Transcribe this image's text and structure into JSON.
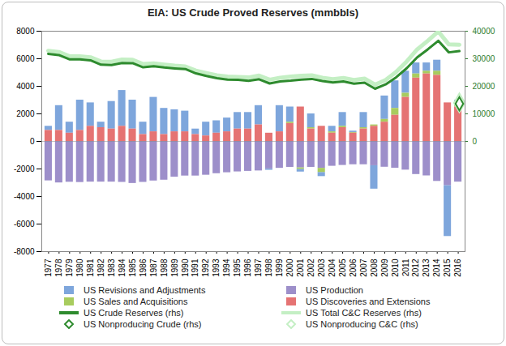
{
  "chart_data": {
    "type": "bar",
    "title": "EIA: US Crude Proved Reserves (mmbbls)",
    "categories": [
      "1977",
      "1978",
      "1979",
      "1980",
      "1981",
      "1982",
      "1983",
      "1984",
      "1985",
      "1986",
      "1987",
      "1988",
      "1989",
      "1990",
      "1991",
      "1992",
      "1993",
      "1994",
      "1995",
      "1996",
      "1997",
      "1998",
      "1999",
      "2000",
      "2001",
      "2002",
      "2003",
      "2004",
      "2005",
      "2006",
      "2007",
      "2008",
      "2009",
      "2010",
      "2011",
      "2012",
      "2013",
      "2014",
      "2015",
      "2016"
    ],
    "ylim": [
      -8000,
      8000
    ],
    "yticks": [
      -8000,
      -6000,
      -4000,
      -2000,
      0,
      2000,
      4000,
      6000,
      8000
    ],
    "y2lim": [
      -40000,
      40000
    ],
    "y2ticks": [
      0,
      10000,
      20000,
      30000,
      40000
    ],
    "stacked": true,
    "grid": false,
    "legend": "bottom",
    "series": [
      {
        "name": "US Revisions and Adjustments",
        "type": "bar",
        "color": "#7ea6dc",
        "values": [
          300,
          1800,
          800,
          2200,
          1700,
          400,
          2000,
          2600,
          2100,
          900,
          2500,
          1900,
          1600,
          1500,
          400,
          1000,
          900,
          1000,
          1200,
          1200,
          1400,
          -100,
          1900,
          1100,
          -200,
          1000,
          -300,
          400,
          1000,
          100,
          1100,
          -1700,
          1700,
          2000,
          1600,
          800,
          600,
          800,
          -3700,
          300
        ]
      },
      {
        "name": "US Production",
        "type": "bar",
        "color": "#9d8fca",
        "values": [
          -2860,
          -3010,
          -2960,
          -2980,
          -2950,
          -2950,
          -2950,
          -2970,
          -3050,
          -2970,
          -2870,
          -2810,
          -2590,
          -2510,
          -2510,
          -2450,
          -2340,
          -2270,
          -2210,
          -2170,
          -2140,
          -1990,
          -1950,
          -1880,
          -1920,
          -1880,
          -1950,
          -1800,
          -1740,
          -1690,
          -1690,
          -1760,
          -1870,
          -1940,
          -2080,
          -2400,
          -2500,
          -2900,
          -3200,
          -2950
        ]
      },
      {
        "name": "US Sales and Acquisitions",
        "type": "bar",
        "color": "#a8cc5e",
        "values": [
          0,
          0,
          0,
          0,
          0,
          0,
          0,
          0,
          0,
          0,
          0,
          0,
          0,
          0,
          0,
          0,
          0,
          0,
          0,
          0,
          0,
          0,
          0,
          100,
          -100,
          100,
          -300,
          100,
          100,
          50,
          100,
          100,
          200,
          500,
          300,
          300,
          200,
          300,
          0,
          200
        ]
      },
      {
        "name": "US Discoveries and Extensions",
        "type": "bar",
        "color": "#e57373",
        "values": [
          800,
          800,
          600,
          800,
          1100,
          1000,
          900,
          1100,
          900,
          500,
          700,
          500,
          700,
          700,
          500,
          400,
          600,
          700,
          900,
          900,
          1200,
          600,
          700,
          1300,
          2500,
          900,
          1100,
          600,
          1000,
          600,
          900,
          1100,
          1400,
          1900,
          3200,
          4600,
          4900,
          4800,
          2800,
          2500
        ]
      },
      {
        "name": "US Crude Reserves (rhs)",
        "type": "line",
        "axis": "y2",
        "color": "#2e8b2e",
        "values": [
          31780,
          31355,
          29810,
          29805,
          29426,
          27858,
          27735,
          28446,
          28416,
          26889,
          27256,
          26825,
          26501,
          26254,
          24682,
          23745,
          22957,
          22457,
          22351,
          22017,
          22546,
          21034,
          21765,
          22045,
          22446,
          22677,
          21891,
          21371,
          21757,
          20972,
          21317,
          19121,
          20682,
          23267,
          26544,
          30529,
          33400,
          36520,
          32318,
          32773
        ]
      },
      {
        "name": "US Total C&C Reserves (rhs)",
        "type": "line",
        "axis": "y2",
        "color": "#c4efc4",
        "values": [
          32900,
          32450,
          30900,
          30900,
          30550,
          29000,
          28900,
          29700,
          29600,
          28100,
          28300,
          27900,
          27500,
          27200,
          25700,
          24800,
          24000,
          23500,
          23400,
          23200,
          23900,
          22400,
          23100,
          23500,
          23800,
          24000,
          23100,
          22600,
          23000,
          22300,
          22800,
          20600,
          22300,
          25200,
          29000,
          33400,
          36500,
          39900,
          35200,
          35100
        ]
      },
      {
        "name": "US Nonproducing Crude (rhs)",
        "type": "scatter",
        "axis": "y2",
        "marker": "diamond",
        "color": "#2e8b2e",
        "values": [
          null,
          null,
          null,
          null,
          null,
          null,
          null,
          null,
          null,
          null,
          null,
          null,
          null,
          null,
          null,
          null,
          null,
          null,
          null,
          null,
          null,
          null,
          null,
          null,
          null,
          null,
          null,
          null,
          null,
          null,
          null,
          null,
          null,
          null,
          null,
          null,
          null,
          null,
          null,
          13700
        ]
      },
      {
        "name": "US Nonproducing C&C (rhs)",
        "type": "scatter",
        "axis": "y2",
        "marker": "diamond",
        "color": "#c4efc4",
        "values": [
          null,
          null,
          null,
          null,
          null,
          null,
          null,
          null,
          null,
          null,
          null,
          null,
          null,
          null,
          null,
          null,
          null,
          null,
          null,
          null,
          null,
          null,
          null,
          null,
          null,
          null,
          null,
          null,
          null,
          null,
          null,
          null,
          null,
          null,
          null,
          null,
          null,
          null,
          null,
          14000
        ]
      }
    ]
  }
}
